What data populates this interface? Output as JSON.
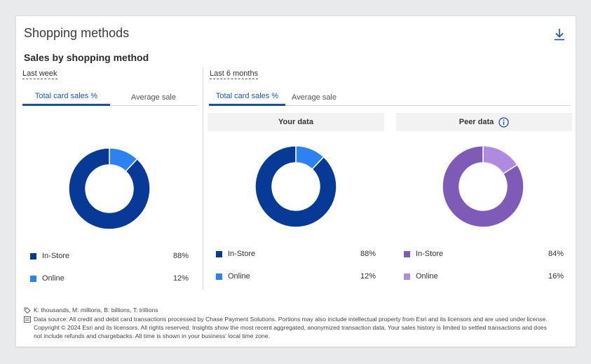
{
  "card": {
    "title": "Shopping methods",
    "subtitle": "Sales by shopping method",
    "download_icon": "download-icon"
  },
  "colors": {
    "instore": "#063a96",
    "online": "#2c82f0",
    "peer_instore": "#7f5bb8",
    "peer_online": "#ae8be0",
    "tab_active": "#1a4fa8"
  },
  "left": {
    "period": "Last week",
    "tabs": [
      "Total card sales %",
      "Average sale"
    ],
    "active_tab": 0,
    "chart": {
      "instore_pct": 88,
      "online_pct": 12
    },
    "legend": [
      {
        "label": "In-Store",
        "value": "88%"
      },
      {
        "label": "Online",
        "value": "12%"
      }
    ]
  },
  "right": {
    "period": "Last 6 months",
    "tabs": [
      "Total card sales %",
      "Average sale"
    ],
    "active_tab": 0,
    "your": {
      "heading": "Your data",
      "chart": {
        "instore_pct": 88,
        "online_pct": 12
      },
      "legend": [
        {
          "label": "In-Store",
          "value": "88%"
        },
        {
          "label": "Online",
          "value": "12%"
        }
      ]
    },
    "peer": {
      "heading": "Peer data",
      "info_icon": "info-icon",
      "chart": {
        "instore_pct": 84,
        "online_pct": 16
      },
      "legend": [
        {
          "label": "In-Store",
          "value": "84%"
        },
        {
          "label": "Online",
          "value": "16%"
        }
      ]
    }
  },
  "footnotes": {
    "units": "K: thousands, M: millions, B: billions, T: trillions",
    "source_line1": "Data source: All credit and debit card transactions processed by Chase Payment Solutions. Portions may also include intellectual property from Esri and its licensors and are used under license.",
    "source_line2": "Copyright © 2024 Esri and its licensors. All rights reserved. Insights show the most recent aggregated, anonymized transaction data. Your sales history is limited to settled transactions and does",
    "source_line3": "not include refunds and chargebacks. All time is shown in your business' local time zone."
  }
}
